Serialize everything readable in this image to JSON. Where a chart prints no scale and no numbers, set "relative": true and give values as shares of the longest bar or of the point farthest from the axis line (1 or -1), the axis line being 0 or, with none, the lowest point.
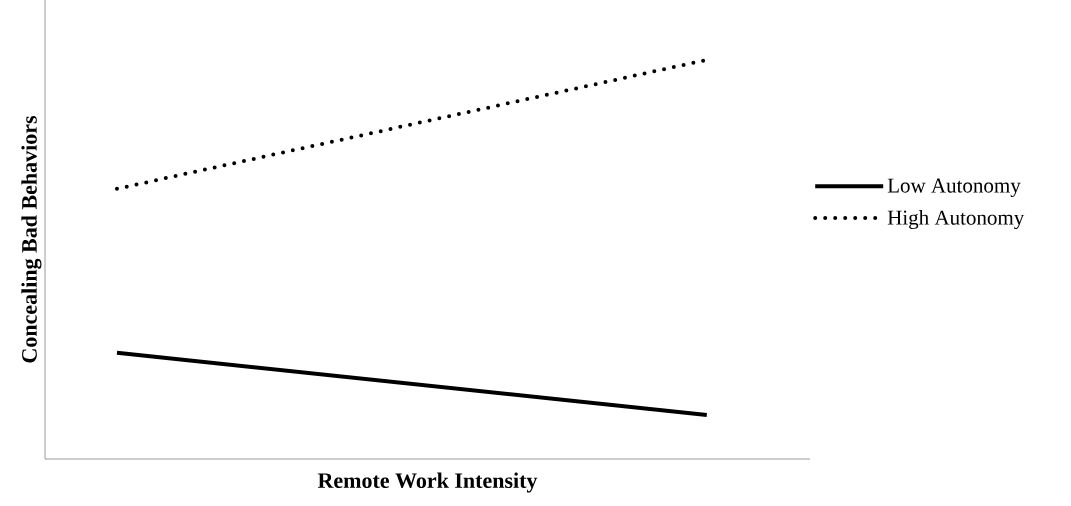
{
  "chart_data": {
    "type": "line",
    "relative": true,
    "xlabel": "Remote Work Intensity",
    "ylabel": "Concealing Bad Behaviors",
    "categories": [
      null,
      null
    ],
    "legend": "right",
    "series": [
      {
        "name": "Low Autonomy",
        "color": "#000000",
        "line_style": "solid",
        "values": [
          0.266,
          0.11
        ]
      },
      {
        "name": "High Autonomy",
        "color": "#000000",
        "line_style": "dotted",
        "values": [
          0.677,
          1
        ]
      }
    ]
  }
}
